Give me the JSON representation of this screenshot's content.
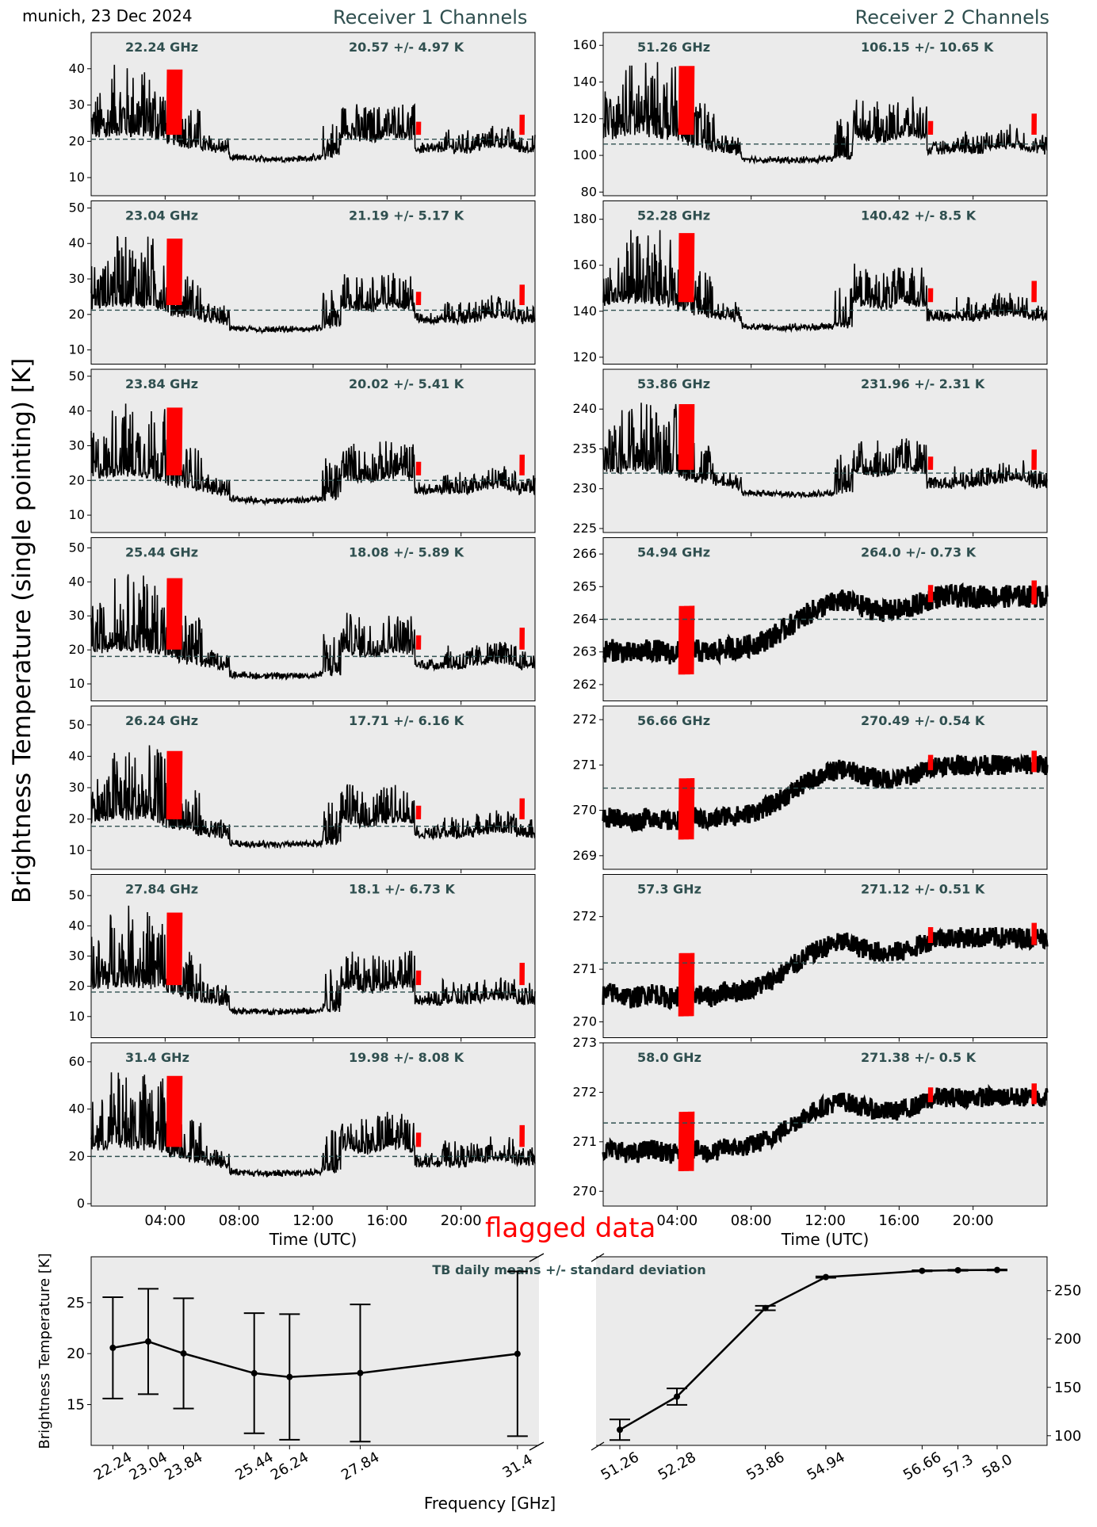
{
  "header": {
    "location_date": "munich, 23 Dec 2024",
    "receiver1_title": "Receiver 1 Channels",
    "receiver2_title": "Receiver 2 Channels",
    "y_axis_label": "Brightness Temperature (single pointing) [K]",
    "flagged_label": "flagged data"
  },
  "colors": {
    "panel_bg": "#ebebeb",
    "trace": "#000000",
    "flagged": "#ff0000",
    "mean_line": "#2f4f4f",
    "text_accent": "#2f4f4f"
  },
  "chart_data": [
    {
      "type": "line",
      "channel": "22.24 GHz",
      "stats": "20.57 +/- 4.97 K",
      "mean": 20.57,
      "ylim": [
        5,
        50
      ],
      "yticks": [
        10,
        20,
        30,
        40
      ],
      "profile": "r1",
      "base": 14,
      "amp": 12,
      "xlabel": "",
      "x_ticks": []
    },
    {
      "type": "line",
      "channel": "23.04 GHz",
      "stats": "21.19 +/- 5.17 K",
      "mean": 21.19,
      "ylim": [
        6,
        52
      ],
      "yticks": [
        10,
        20,
        30,
        40,
        50
      ],
      "profile": "r1",
      "base": 14.5,
      "amp": 12.5,
      "xlabel": "",
      "x_ticks": []
    },
    {
      "type": "line",
      "channel": "23.84 GHz",
      "stats": "20.02 +/- 5.41 K",
      "mean": 20.02,
      "ylim": [
        5,
        52
      ],
      "yticks": [
        10,
        20,
        30,
        40,
        50
      ],
      "profile": "r1",
      "base": 13,
      "amp": 13,
      "xlabel": "",
      "x_ticks": []
    },
    {
      "type": "line",
      "channel": "25.44 GHz",
      "stats": "18.08 +/- 5.89 K",
      "mean": 18.08,
      "ylim": [
        5,
        53
      ],
      "yticks": [
        10,
        20,
        30,
        40,
        50
      ],
      "profile": "r1",
      "base": 11,
      "amp": 14,
      "xlabel": "",
      "x_ticks": []
    },
    {
      "type": "line",
      "channel": "26.24 GHz",
      "stats": "17.71 +/- 6.16 K",
      "mean": 17.71,
      "ylim": [
        4,
        56
      ],
      "yticks": [
        10,
        20,
        30,
        40,
        50
      ],
      "profile": "r1",
      "base": 10.5,
      "amp": 14.5,
      "xlabel": "",
      "x_ticks": []
    },
    {
      "type": "line",
      "channel": "27.84 GHz",
      "stats": "18.1 +/- 6.73 K",
      "mean": 18.1,
      "ylim": [
        3,
        57
      ],
      "yticks": [
        10,
        20,
        30,
        40,
        50
      ],
      "profile": "r1",
      "base": 10,
      "amp": 16,
      "xlabel": "",
      "x_ticks": []
    },
    {
      "type": "line",
      "channel": "31.4 GHz",
      "stats": "19.98 +/- 8.08 K",
      "mean": 19.98,
      "ylim": [
        -1,
        68
      ],
      "yticks": [
        0,
        20,
        40,
        60
      ],
      "profile": "r1",
      "base": 11,
      "amp": 20,
      "xlabel": "Time (UTC)",
      "x_ticks": [
        "04:00",
        "08:00",
        "12:00",
        "16:00",
        "20:00"
      ]
    },
    {
      "type": "line",
      "channel": "51.26 GHz",
      "stats": "106.15 +/- 10.65 K",
      "mean": 106.15,
      "ylim": [
        78,
        167
      ],
      "yticks": [
        80,
        100,
        120,
        140,
        160
      ],
      "profile": "r1",
      "base": 95,
      "amp": 25,
      "xlabel": "",
      "x_ticks": []
    },
    {
      "type": "line",
      "channel": "52.28 GHz",
      "stats": "140.42 +/- 8.5 K",
      "mean": 140.42,
      "ylim": [
        117,
        188
      ],
      "yticks": [
        120,
        140,
        160,
        180
      ],
      "profile": "r1",
      "base": 131,
      "amp": 20,
      "xlabel": "",
      "x_ticks": []
    },
    {
      "type": "line",
      "channel": "53.86 GHz",
      "stats": "231.96 +/- 2.31 K",
      "mean": 231.96,
      "ylim": [
        224.5,
        245
      ],
      "yticks": [
        225,
        230,
        235,
        240
      ],
      "profile": "r1",
      "base": 228.8,
      "amp": 5.5,
      "xlabel": "",
      "x_ticks": []
    },
    {
      "type": "line",
      "channel": "54.94 GHz",
      "stats": "264.0 +/- 0.73 K",
      "mean": 264.0,
      "ylim": [
        261.5,
        266.5
      ],
      "yticks": [
        262,
        263,
        264,
        265,
        266
      ],
      "profile": "r2",
      "lo": 263.0,
      "hi": 264.7,
      "noise": 0.7,
      "xlabel": "",
      "x_ticks": []
    },
    {
      "type": "line",
      "channel": "56.66 GHz",
      "stats": "270.49 +/- 0.54 K",
      "mean": 270.49,
      "ylim": [
        268.7,
        272.3
      ],
      "yticks": [
        269,
        270,
        271,
        272
      ],
      "profile": "r2",
      "lo": 269.8,
      "hi": 271.0,
      "noise": 0.45,
      "xlabel": "",
      "x_ticks": []
    },
    {
      "type": "line",
      "channel": "57.3 GHz",
      "stats": "271.12 +/- 0.51 K",
      "mean": 271.12,
      "ylim": [
        269.7,
        272.8
      ],
      "yticks": [
        270,
        271,
        272
      ],
      "profile": "r2",
      "lo": 270.5,
      "hi": 271.6,
      "noise": 0.4,
      "xlabel": "",
      "x_ticks": []
    },
    {
      "type": "line",
      "channel": "58.0 GHz",
      "stats": "271.38 +/- 0.5 K",
      "mean": 271.38,
      "ylim": [
        269.7,
        273
      ],
      "yticks": [
        270,
        271,
        272,
        273
      ],
      "profile": "r2",
      "lo": 270.8,
      "hi": 271.9,
      "noise": 0.4,
      "xlabel": "Time (UTC)",
      "x_ticks": [
        "04:00",
        "08:00",
        "12:00",
        "16:00",
        "20:00"
      ]
    }
  ],
  "summary_chart": {
    "type": "line",
    "title": "TB daily means +/- standard deviation",
    "xlabel": "Frequency [GHz]",
    "ylabel_left": "Brightness Temperature [K]",
    "left": {
      "freqs": [
        22.24,
        23.04,
        23.84,
        25.44,
        26.24,
        27.84,
        31.4
      ],
      "labels": [
        "22.24",
        "23.04",
        "23.84",
        "25.44",
        "26.24",
        "27.84",
        "31.4"
      ],
      "means": [
        20.57,
        21.19,
        20.02,
        18.08,
        17.71,
        18.1,
        19.98
      ],
      "stds": [
        4.97,
        5.17,
        5.41,
        5.89,
        6.16,
        6.73,
        8.08
      ],
      "ylim": [
        11,
        29.5
      ],
      "yticks": [
        15,
        20,
        25
      ]
    },
    "right": {
      "freqs": [
        51.26,
        52.28,
        53.86,
        54.94,
        56.66,
        57.3,
        58.0
      ],
      "labels": [
        "51.26",
        "52.28",
        "53.86",
        "54.94",
        "56.66",
        "57.3",
        "58.0"
      ],
      "means": [
        106.15,
        140.42,
        231.96,
        264.0,
        270.49,
        271.12,
        271.38
      ],
      "stds": [
        10.65,
        8.5,
        2.31,
        0.73,
        0.54,
        0.51,
        0.5
      ],
      "ylim": [
        90,
        285
      ],
      "yticks": [
        100,
        150,
        200,
        250
      ]
    }
  }
}
